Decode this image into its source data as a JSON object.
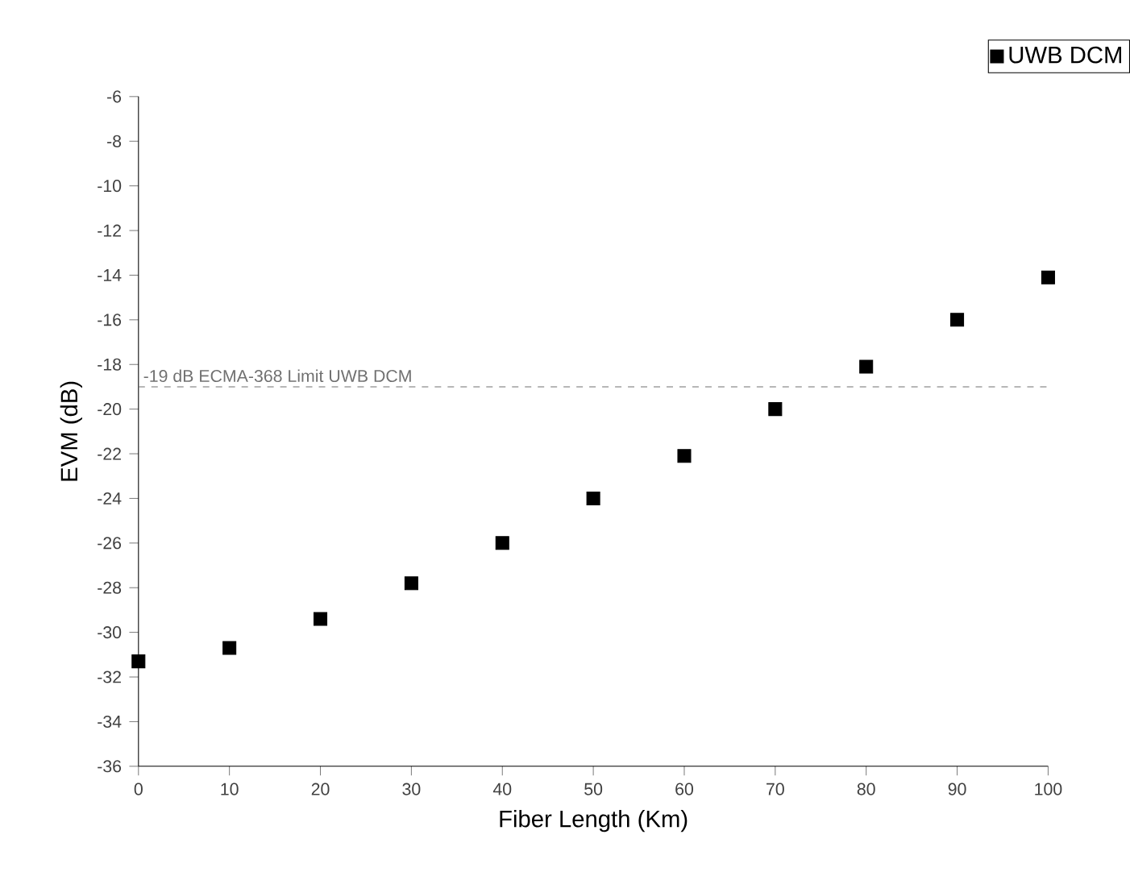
{
  "chart_data": {
    "type": "scatter",
    "xlabel": "Fiber Length (Km)",
    "ylabel": "EVM (dB)",
    "x": [
      0,
      10,
      20,
      30,
      40,
      50,
      60,
      70,
      80,
      90,
      100
    ],
    "series": [
      {
        "name": "UWB DCM",
        "color": "#000000",
        "values": [
          -31.3,
          -30.7,
          -29.4,
          -27.8,
          -26.0,
          -24.0,
          -22.1,
          -20.0,
          -18.1,
          -16.0,
          -14.1
        ]
      }
    ],
    "xlim": [
      0,
      100
    ],
    "xticks": [
      0,
      10,
      20,
      30,
      40,
      50,
      60,
      70,
      80,
      90,
      100
    ],
    "ylim": [
      -36,
      -6
    ],
    "yticks": [
      -36,
      -34,
      -32,
      -30,
      -28,
      -26,
      -24,
      -22,
      -20,
      -18,
      -16,
      -14,
      -12,
      -10,
      -8,
      -6
    ],
    "ref_lines": [
      {
        "axis": "y",
        "value": -19,
        "label": "-19 dB ECMA-368 Limit UWB DCM",
        "color": "#707070",
        "line_style": "dashed"
      }
    ],
    "marker": "square",
    "legend": "top right",
    "grid": false
  }
}
